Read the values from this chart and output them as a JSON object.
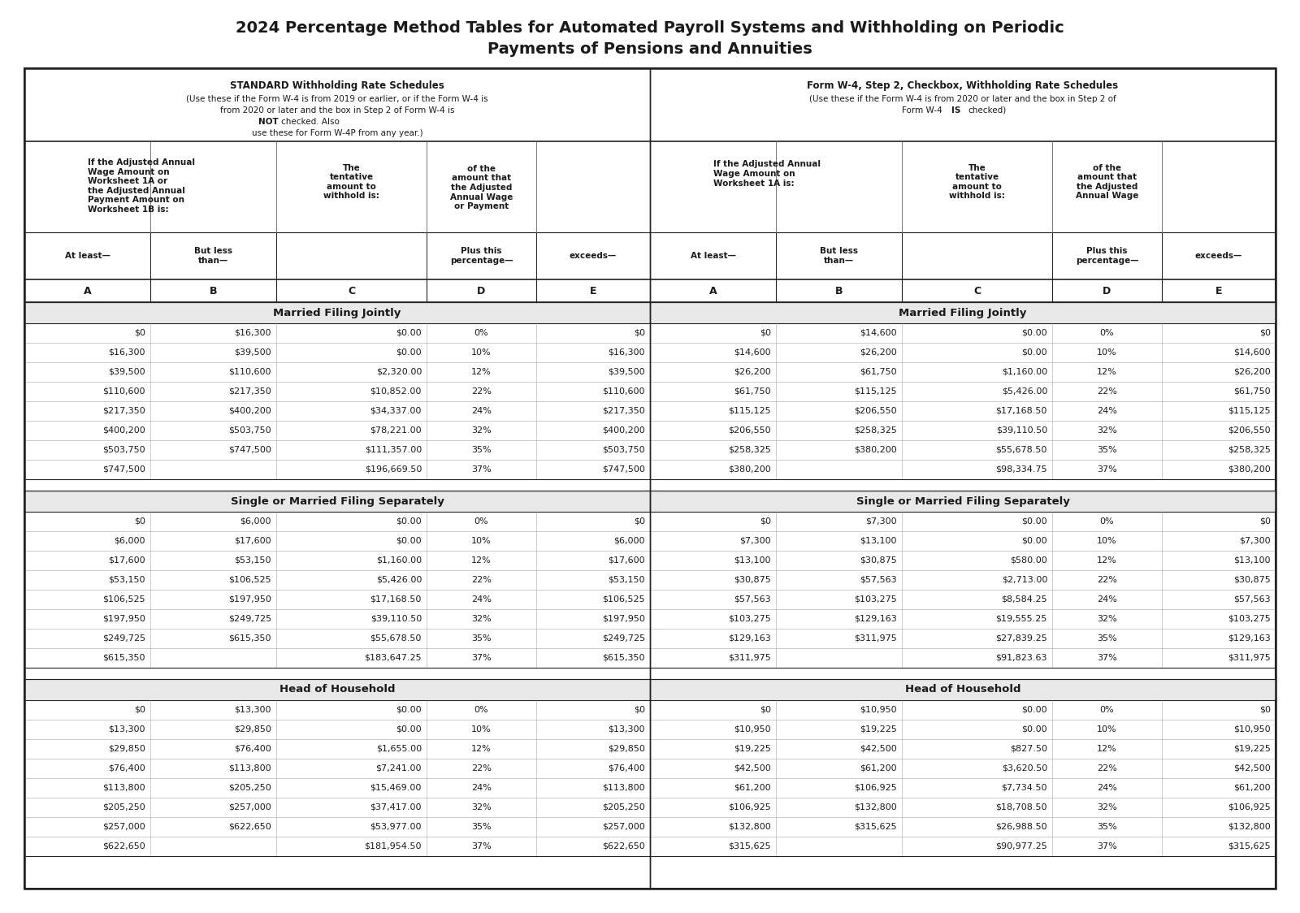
{
  "title_line1": "2024 Percentage Method Tables for Automated Payroll Systems and Withholding on Periodic",
  "title_line2": "Payments of Pensions and Annuities",
  "bg_color": "#ffffff",
  "text_color": "#1a1a1a",
  "section_bg": "#e8e8e8",
  "border_color": "#222222",
  "sections": [
    {
      "name": "Married Filing Jointly",
      "left_data": [
        [
          "$0",
          "$16,300",
          "$0.00",
          "0%",
          "$0"
        ],
        [
          "$16,300",
          "$39,500",
          "$0.00",
          "10%",
          "$16,300"
        ],
        [
          "$39,500",
          "$110,600",
          "$2,320.00",
          "12%",
          "$39,500"
        ],
        [
          "$110,600",
          "$217,350",
          "$10,852.00",
          "22%",
          "$110,600"
        ],
        [
          "$217,350",
          "$400,200",
          "$34,337.00",
          "24%",
          "$217,350"
        ],
        [
          "$400,200",
          "$503,750",
          "$78,221.00",
          "32%",
          "$400,200"
        ],
        [
          "$503,750",
          "$747,500",
          "$111,357.00",
          "35%",
          "$503,750"
        ],
        [
          "$747,500",
          "",
          "$196,669.50",
          "37%",
          "$747,500"
        ]
      ],
      "right_data": [
        [
          "$0",
          "$14,600",
          "$0.00",
          "0%",
          "$0"
        ],
        [
          "$14,600",
          "$26,200",
          "$0.00",
          "10%",
          "$14,600"
        ],
        [
          "$26,200",
          "$61,750",
          "$1,160.00",
          "12%",
          "$26,200"
        ],
        [
          "$61,750",
          "$115,125",
          "$5,426.00",
          "22%",
          "$61,750"
        ],
        [
          "$115,125",
          "$206,550",
          "$17,168.50",
          "24%",
          "$115,125"
        ],
        [
          "$206,550",
          "$258,325",
          "$39,110.50",
          "32%",
          "$206,550"
        ],
        [
          "$258,325",
          "$380,200",
          "$55,678.50",
          "35%",
          "$258,325"
        ],
        [
          "$380,200",
          "",
          "$98,334.75",
          "37%",
          "$380,200"
        ]
      ]
    },
    {
      "name": "Single or Married Filing Separately",
      "left_data": [
        [
          "$0",
          "$6,000",
          "$0.00",
          "0%",
          "$0"
        ],
        [
          "$6,000",
          "$17,600",
          "$0.00",
          "10%",
          "$6,000"
        ],
        [
          "$17,600",
          "$53,150",
          "$1,160.00",
          "12%",
          "$17,600"
        ],
        [
          "$53,150",
          "$106,525",
          "$5,426.00",
          "22%",
          "$53,150"
        ],
        [
          "$106,525",
          "$197,950",
          "$17,168.50",
          "24%",
          "$106,525"
        ],
        [
          "$197,950",
          "$249,725",
          "$39,110.50",
          "32%",
          "$197,950"
        ],
        [
          "$249,725",
          "$615,350",
          "$55,678.50",
          "35%",
          "$249,725"
        ],
        [
          "$615,350",
          "",
          "$183,647.25",
          "37%",
          "$615,350"
        ]
      ],
      "right_data": [
        [
          "$0",
          "$7,300",
          "$0.00",
          "0%",
          "$0"
        ],
        [
          "$7,300",
          "$13,100",
          "$0.00",
          "10%",
          "$7,300"
        ],
        [
          "$13,100",
          "$30,875",
          "$580.00",
          "12%",
          "$13,100"
        ],
        [
          "$30,875",
          "$57,563",
          "$2,713.00",
          "22%",
          "$30,875"
        ],
        [
          "$57,563",
          "$103,275",
          "$8,584.25",
          "24%",
          "$57,563"
        ],
        [
          "$103,275",
          "$129,163",
          "$19,555.25",
          "32%",
          "$103,275"
        ],
        [
          "$129,163",
          "$311,975",
          "$27,839.25",
          "35%",
          "$129,163"
        ],
        [
          "$311,975",
          "",
          "$91,823.63",
          "37%",
          "$311,975"
        ]
      ]
    },
    {
      "name": "Head of Household",
      "left_data": [
        [
          "$0",
          "$13,300",
          "$0.00",
          "0%",
          "$0"
        ],
        [
          "$13,300",
          "$29,850",
          "$0.00",
          "10%",
          "$13,300"
        ],
        [
          "$29,850",
          "$76,400",
          "$1,655.00",
          "12%",
          "$29,850"
        ],
        [
          "$76,400",
          "$113,800",
          "$7,241.00",
          "22%",
          "$76,400"
        ],
        [
          "$113,800",
          "$205,250",
          "$15,469.00",
          "24%",
          "$113,800"
        ],
        [
          "$205,250",
          "$257,000",
          "$37,417.00",
          "32%",
          "$205,250"
        ],
        [
          "$257,000",
          "$622,650",
          "$53,977.00",
          "35%",
          "$257,000"
        ],
        [
          "$622,650",
          "",
          "$181,954.50",
          "37%",
          "$622,650"
        ]
      ],
      "right_data": [
        [
          "$0",
          "$10,950",
          "$0.00",
          "0%",
          "$0"
        ],
        [
          "$10,950",
          "$19,225",
          "$0.00",
          "10%",
          "$10,950"
        ],
        [
          "$19,225",
          "$42,500",
          "$827.50",
          "12%",
          "$19,225"
        ],
        [
          "$42,500",
          "$61,200",
          "$3,620.50",
          "22%",
          "$42,500"
        ],
        [
          "$61,200",
          "$106,925",
          "$7,734.50",
          "24%",
          "$61,200"
        ],
        [
          "$106,925",
          "$132,800",
          "$18,708.50",
          "32%",
          "$106,925"
        ],
        [
          "$132,800",
          "$315,625",
          "$26,988.50",
          "35%",
          "$132,800"
        ],
        [
          "$315,625",
          "",
          "$90,977.25",
          "37%",
          "$315,625"
        ]
      ]
    }
  ]
}
